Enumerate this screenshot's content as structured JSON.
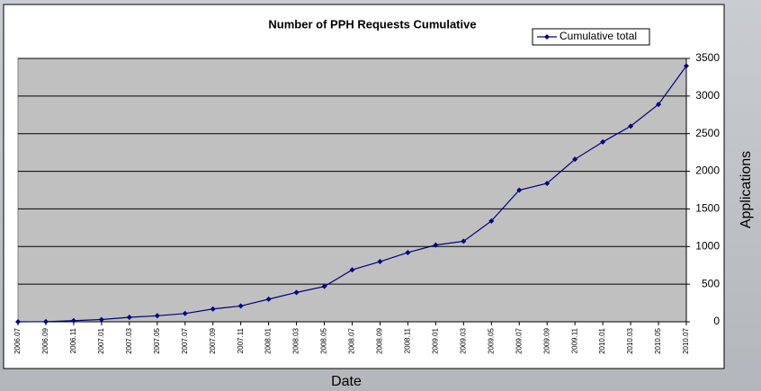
{
  "chart_data": {
    "type": "line",
    "title": "Number of PPH Requests Cumulative",
    "x_label": "Date",
    "y_label": "Applications",
    "categories": [
      "2006.07",
      "2006.09",
      "2006.11",
      "2007.01",
      "2007.03",
      "2007.05",
      "2007.07",
      "2007.09",
      "2007.11",
      "2008.01",
      "2008.03",
      "2008.05",
      "2008.07",
      "2008.09",
      "2008.11",
      "2009.01",
      "2009.03",
      "2009.05",
      "2009.07",
      "2009.09",
      "2009.11",
      "2010.01",
      "2010.03",
      "2010.05",
      "2010.07"
    ],
    "series": [
      {
        "name": "Cumulative total",
        "color": "#000080",
        "values": [
          0,
          2,
          15,
          30,
          60,
          80,
          110,
          170,
          210,
          300,
          390,
          470,
          690,
          800,
          920,
          1020,
          1070,
          1340,
          1750,
          1840,
          2160,
          2390,
          2600,
          2890,
          3400
        ]
      }
    ],
    "ylim": [
      0,
      3500
    ],
    "yticks": [
      0,
      500,
      1000,
      1500,
      2000,
      2500,
      3000,
      3500
    ],
    "grid": true,
    "legend": "top-right",
    "plot_background": "#c0c0c0"
  }
}
